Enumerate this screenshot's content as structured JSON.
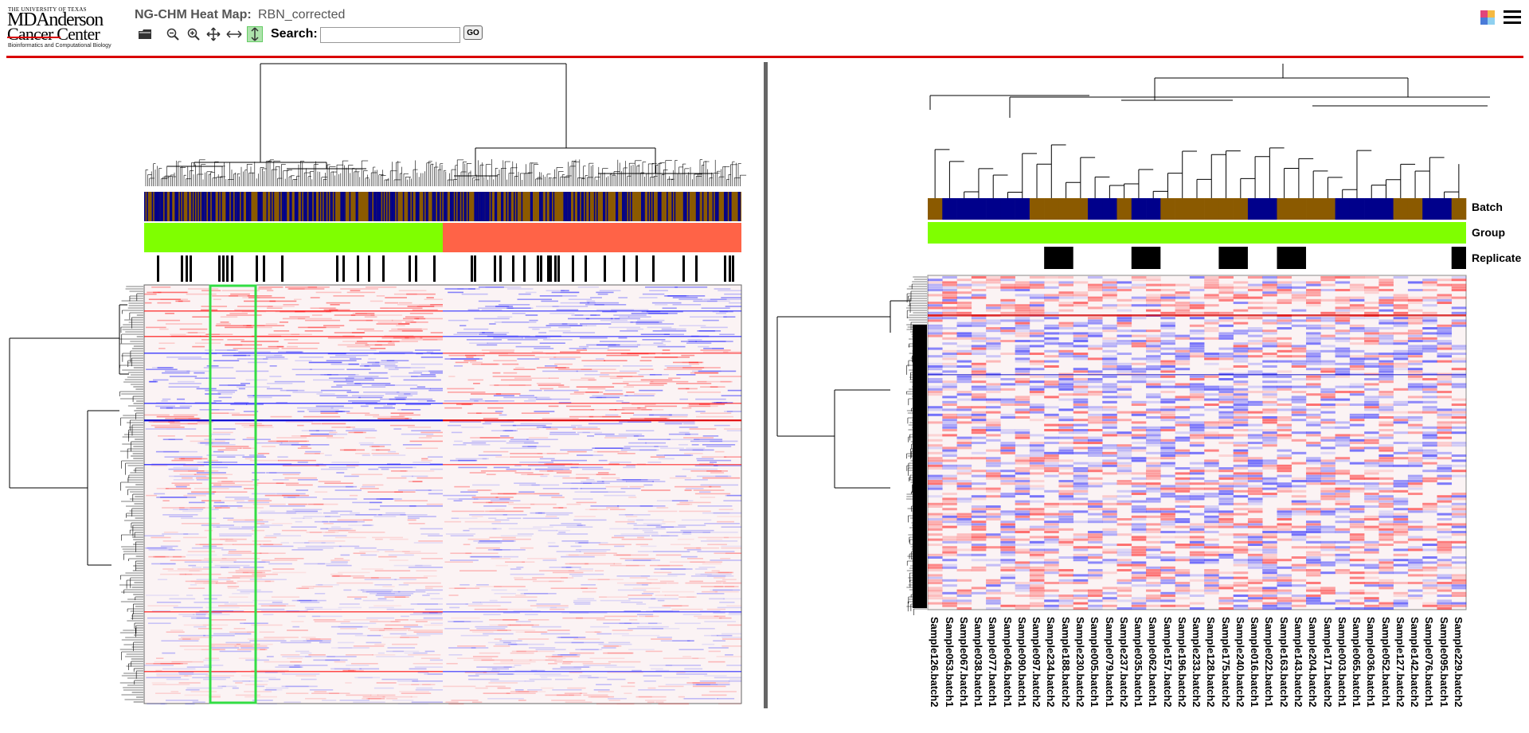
{
  "header": {
    "logo": {
      "top": "THE UNIVERSITY OF TEXAS",
      "line1": "MDAnderson",
      "line2": "Cancer Center",
      "sub": "Bioinformatics and Computational Biology"
    },
    "title_label": "NG-CHM Heat Map:",
    "title_value": "RBN_corrected",
    "toolbar": {
      "tools": [
        {
          "name": "open-folder-icon",
          "glyph": "▰"
        },
        {
          "name": "zoom-out-icon",
          "glyph": "⊖"
        },
        {
          "name": "zoom-in-icon",
          "glyph": "⊕"
        },
        {
          "name": "pan-icon",
          "glyph": "✥"
        },
        {
          "name": "horizontal-expand-icon",
          "glyph": "⇔"
        },
        {
          "name": "vertical-expand-icon",
          "glyph": "⇕"
        }
      ],
      "search_label": "Search:",
      "search_value": "",
      "go_label": "GO"
    }
  },
  "detail": {
    "covariates": [
      "Batch",
      "Group",
      "Replicate"
    ],
    "columns": [
      "Sample126.batch2",
      "Sample053.batch1",
      "Sample067.batch1",
      "Sample038.batch1",
      "Sample077.batch1",
      "Sample046.batch1",
      "Sample090.batch1",
      "Sample097.batch2",
      "Sample234.batch2",
      "Sample188.batch2",
      "Sample230.batch2",
      "Sample005.batch1",
      "Sample079.batch1",
      "Sample237.batch2",
      "Sample035.batch1",
      "Sample062.batch1",
      "Sample157.batch2",
      "Sample196.batch2",
      "Sample233.batch2",
      "Sample128.batch2",
      "Sample175.batch2",
      "Sample240.batch2",
      "Sample016.batch1",
      "Sample022.batch1",
      "Sample163.batch2",
      "Sample143.batch2",
      "Sample204.batch2",
      "Sample171.batch2",
      "Sample003.batch1",
      "Sample065.batch1",
      "Sample036.batch1",
      "Sample052.batch1",
      "Sample127.batch2",
      "Sample142.batch2",
      "Sample076.batch1",
      "Sample095.batch1",
      "Sample229.batch2"
    ]
  },
  "colors": {
    "batch1": "#00008b",
    "batch2": "#8b5a00",
    "group1": "#7fff00",
    "group2": "#ff6347",
    "replicate": "#000000",
    "high": "#ff0000",
    "low": "#0000ff",
    "selection": "#33dd44",
    "accent": "#d90000"
  }
}
